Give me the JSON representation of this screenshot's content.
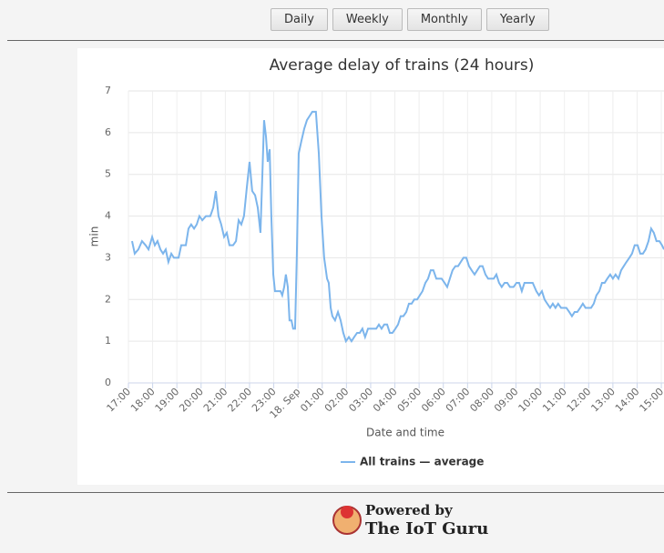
{
  "buttons": [
    "Daily",
    "Weekly",
    "Monthly",
    "Yearly"
  ],
  "chart_data": {
    "type": "line",
    "title": "Average delay of trains (24 hours)",
    "x_label": "Date and time",
    "y_label": "min",
    "x": [
      0.15,
      0.26,
      0.41,
      0.56,
      0.71,
      0.83,
      0.98,
      1.09,
      1.2,
      1.32,
      1.43,
      1.54,
      1.65,
      1.77,
      1.88,
      2.07,
      2.18,
      2.37,
      2.48,
      2.59,
      2.71,
      2.82,
      2.93,
      3.05,
      3.2,
      3.38,
      3.5,
      3.61,
      3.72,
      3.83,
      3.95,
      4.06,
      4.17,
      4.32,
      4.44,
      4.55,
      4.66,
      4.77,
      4.89,
      5.0,
      5.11,
      5.23,
      5.34,
      5.45,
      5.53,
      5.6,
      5.68,
      5.75,
      5.83,
      5.9,
      5.98,
      6.05,
      6.17,
      6.28,
      6.35,
      6.43,
      6.5,
      6.58,
      6.65,
      6.73,
      6.8,
      6.88,
      6.95,
      7.03,
      7.14,
      7.26,
      7.37,
      7.48,
      7.59,
      7.74,
      7.86,
      7.97,
      8.08,
      8.2,
      8.27,
      8.35,
      8.42,
      8.53,
      8.65,
      8.76,
      8.87,
      8.98,
      9.1,
      9.21,
      9.32,
      9.44,
      9.55,
      9.66,
      9.77,
      9.89,
      10.04,
      10.23,
      10.34,
      10.45,
      10.56,
      10.68,
      10.79,
      10.9,
      11.02,
      11.13,
      11.24,
      11.35,
      11.47,
      11.58,
      11.69,
      11.8,
      11.92,
      12.03,
      12.14,
      12.26,
      12.37,
      12.48,
      12.59,
      12.71,
      12.82,
      12.93,
      13.05,
      13.16,
      13.27,
      13.38,
      13.5,
      13.61,
      13.72,
      13.83,
      13.95,
      14.06,
      14.17,
      14.29,
      14.4,
      14.51,
      14.62,
      14.74,
      14.85,
      14.96,
      15.08,
      15.19,
      15.3,
      15.41,
      15.53,
      15.64,
      15.75,
      15.9,
      16.02,
      16.13,
      16.24,
      16.35,
      16.5,
      16.69,
      16.84,
      16.95,
      17.07,
      17.18,
      17.29,
      17.41,
      17.52,
      17.63,
      17.74,
      17.86,
      17.97,
      18.08,
      18.2,
      18.31,
      18.42,
      18.53,
      18.65,
      18.76,
      18.87,
      18.98,
      19.1,
      19.21,
      19.32,
      19.44,
      19.55,
      19.66,
      19.77,
      19.89,
      20.0,
      20.11,
      20.23,
      20.34,
      20.45,
      20.56,
      20.68,
      20.79,
      20.9,
      21.02,
      21.13,
      21.24,
      21.35,
      21.47,
      21.58,
      21.69,
      21.8,
      21.92,
      22.03,
      22.11
    ],
    "series": [
      {
        "name": "All trains — average",
        "color": "#7cb5ec",
        "values": [
          3.4,
          3.1,
          3.2,
          3.4,
          3.3,
          3.2,
          3.5,
          3.3,
          3.4,
          3.2,
          3.1,
          3.2,
          2.9,
          3.1,
          3.0,
          3.0,
          3.3,
          3.3,
          3.7,
          3.8,
          3.7,
          3.8,
          4.0,
          3.9,
          4.0,
          4.0,
          4.2,
          4.6,
          4.0,
          3.8,
          3.5,
          3.6,
          3.3,
          3.3,
          3.4,
          3.9,
          3.8,
          4.0,
          4.7,
          5.3,
          4.6,
          4.5,
          4.2,
          3.6,
          5.0,
          6.3,
          5.9,
          5.3,
          5.6,
          4.0,
          2.6,
          2.2,
          2.2,
          2.2,
          2.1,
          2.3,
          2.6,
          2.3,
          1.5,
          1.5,
          1.3,
          1.3,
          3.0,
          5.5,
          5.8,
          6.1,
          6.3,
          6.4,
          6.5,
          6.5,
          5.5,
          4.0,
          3.0,
          2.5,
          2.4,
          1.8,
          1.6,
          1.5,
          1.7,
          1.5,
          1.2,
          1.0,
          1.1,
          1.0,
          1.1,
          1.2,
          1.2,
          1.3,
          1.1,
          1.3,
          1.3,
          1.3,
          1.4,
          1.3,
          1.4,
          1.4,
          1.2,
          1.2,
          1.3,
          1.4,
          1.6,
          1.6,
          1.7,
          1.9,
          1.9,
          2.0,
          2.0,
          2.1,
          2.2,
          2.4,
          2.5,
          2.7,
          2.7,
          2.5,
          2.5,
          2.5,
          2.4,
          2.3,
          2.5,
          2.7,
          2.8,
          2.8,
          2.9,
          3.0,
          3.0,
          2.8,
          2.7,
          2.6,
          2.7,
          2.8,
          2.8,
          2.6,
          2.5,
          2.5,
          2.5,
          2.6,
          2.4,
          2.3,
          2.4,
          2.4,
          2.3,
          2.3,
          2.4,
          2.4,
          2.2,
          2.4,
          2.4,
          2.4,
          2.2,
          2.1,
          2.2,
          2.0,
          1.9,
          1.8,
          1.9,
          1.8,
          1.9,
          1.8,
          1.8,
          1.8,
          1.7,
          1.6,
          1.7,
          1.7,
          1.8,
          1.9,
          1.8,
          1.8,
          1.8,
          1.9,
          2.1,
          2.2,
          2.4,
          2.4,
          2.5,
          2.6,
          2.5,
          2.6,
          2.5,
          2.7,
          2.8,
          2.9,
          3.0,
          3.1,
          3.3,
          3.3,
          3.1,
          3.1,
          3.2,
          3.4,
          3.7,
          3.6,
          3.4,
          3.4,
          3.3,
          3.2
        ]
      }
    ],
    "xlim": [
      0,
      22.11
    ],
    "ylim": [
      0,
      7
    ],
    "yticks": [
      0,
      1,
      2,
      3,
      4,
      5,
      6,
      7
    ],
    "xticks": [
      {
        "value": 0,
        "label": "17:00"
      },
      {
        "value": 1,
        "label": "18:00"
      },
      {
        "value": 2,
        "label": "19:00"
      },
      {
        "value": 3,
        "label": "20:00"
      },
      {
        "value": 4,
        "label": "21:00"
      },
      {
        "value": 5,
        "label": "22:00"
      },
      {
        "value": 6,
        "label": "23:00"
      },
      {
        "value": 7,
        "label": "18. Sep"
      },
      {
        "value": 8,
        "label": "01:00"
      },
      {
        "value": 9,
        "label": "02:00"
      },
      {
        "value": 10,
        "label": "03:00"
      },
      {
        "value": 11,
        "label": "04:00"
      },
      {
        "value": 12,
        "label": "05:00"
      },
      {
        "value": 13,
        "label": "06:00"
      },
      {
        "value": 14,
        "label": "07:00"
      },
      {
        "value": 15,
        "label": "08:00"
      },
      {
        "value": 16,
        "label": "09:00"
      },
      {
        "value": 17,
        "label": "10:00"
      },
      {
        "value": 18,
        "label": "11:00"
      },
      {
        "value": 19,
        "label": "12:00"
      },
      {
        "value": 20,
        "label": "13:00"
      },
      {
        "value": 21,
        "label": "14:00"
      },
      {
        "value": 22,
        "label": "15:00"
      }
    ],
    "grid": true
  },
  "footer": {
    "powered": "Powered by",
    "brand": "The IoT Guru"
  }
}
